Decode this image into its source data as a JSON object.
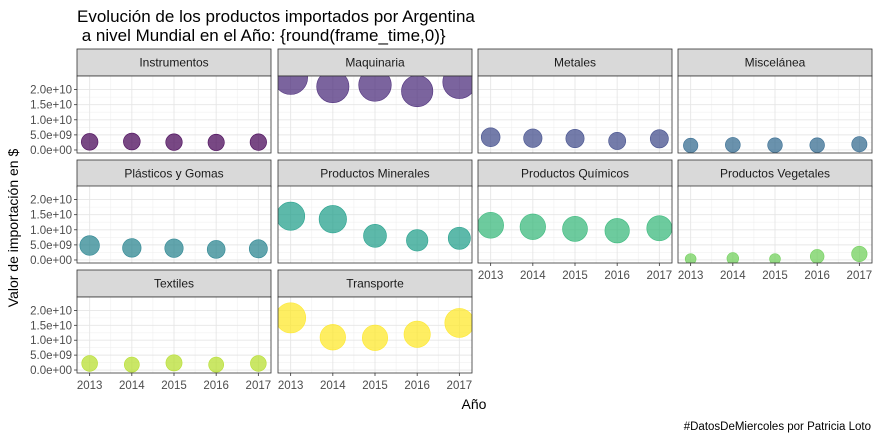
{
  "chart_data": {
    "type": "scatter",
    "title_line1": "Evolución de los productos importados por Argentina",
    "title_line2": " a nivel Mundial en el Año: {round(frame_time,0)}",
    "xlabel": "Año",
    "ylabel": "Valor de importación en $",
    "caption": "#DatosDeMiercoles por Patricia Loto",
    "x_ticks": [
      "2013",
      "2014",
      "2015",
      "2016",
      "2017"
    ],
    "x_values": [
      2013,
      2014,
      2015,
      2016,
      2017
    ],
    "xlim": [
      2012.7,
      2017.3
    ],
    "y_ticks": [
      "0.0e+00",
      "5.0e+09",
      "1.0e+10",
      "1.5e+10",
      "2.0e+10"
    ],
    "y_values": [
      0,
      5000000000,
      10000000000,
      15000000000,
      20000000000
    ],
    "ylim": [
      -1000000000,
      24500000000
    ],
    "grid": true,
    "facets": [
      {
        "name": "Instrumentos",
        "color": "#440154",
        "values": [
          2700000000,
          2800000000,
          2600000000,
          2500000000,
          2600000000
        ]
      },
      {
        "name": "Maquinaria",
        "color": "#482878",
        "values": [
          24000000000,
          21000000000,
          21500000000,
          19500000000,
          22500000000
        ]
      },
      {
        "name": "Metales",
        "color": "#3e4a89",
        "values": [
          4200000000,
          3900000000,
          3800000000,
          3000000000,
          3700000000
        ]
      },
      {
        "name": "Miscelánea",
        "color": "#31688e",
        "values": [
          1500000000,
          1700000000,
          1600000000,
          1600000000,
          1900000000
        ]
      },
      {
        "name": "Plásticos y Gomas",
        "color": "#26828e",
        "values": [
          4800000000,
          4000000000,
          3900000000,
          3500000000,
          3700000000
        ]
      },
      {
        "name": "Productos Minerales",
        "color": "#1f9e89",
        "values": [
          14500000000,
          13500000000,
          8000000000,
          6500000000,
          7200000000
        ]
      },
      {
        "name": "Productos Químicos",
        "color": "#35b779",
        "values": [
          11500000000,
          11000000000,
          10300000000,
          9700000000,
          10500000000
        ]
      },
      {
        "name": "Productos Vegetales",
        "color": "#6ece58",
        "values": [
          300000000,
          500000000,
          300000000,
          1200000000,
          2000000000
        ]
      },
      {
        "name": "Textiles",
        "color": "#b5de2b",
        "values": [
          2200000000,
          1800000000,
          2400000000,
          1800000000,
          2200000000
        ]
      },
      {
        "name": "Transporte",
        "color": "#fde725",
        "values": [
          17500000000,
          11000000000,
          10800000000,
          12000000000,
          15800000000
        ]
      }
    ]
  }
}
